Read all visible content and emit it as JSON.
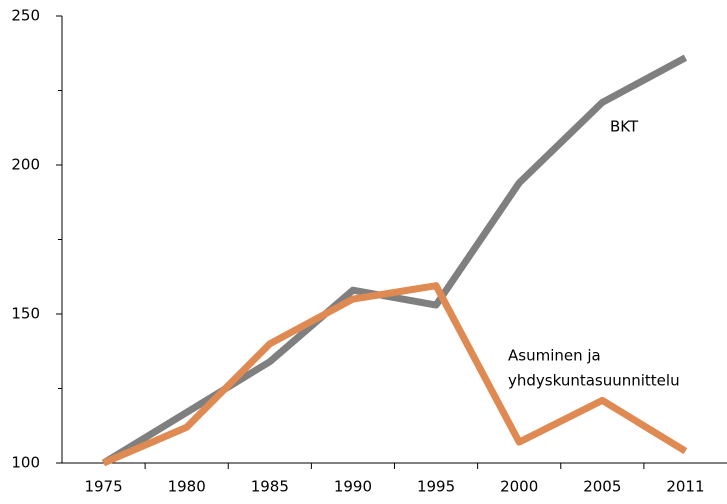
{
  "chart_data": {
    "type": "line",
    "categories": [
      "1975",
      "1980",
      "1985",
      "1990",
      "1995",
      "2000",
      "2005",
      "2011"
    ],
    "series": [
      {
        "name": "BKT",
        "color": "#7f7f7f",
        "values": [
          100,
          117,
          134,
          158,
          153,
          194,
          221,
          236
        ]
      },
      {
        "name": [
          "Asuminen ja",
          "yhdyskuntasuunnittelu"
        ],
        "color": "#e08a53",
        "values": [
          100,
          112,
          140,
          155,
          159.5,
          107,
          121,
          104
        ]
      }
    ],
    "ylim": [
      100,
      250
    ],
    "yticks": [
      100,
      150,
      200,
      250
    ],
    "yminorticks": [
      125,
      175,
      225
    ],
    "grid": false
  }
}
